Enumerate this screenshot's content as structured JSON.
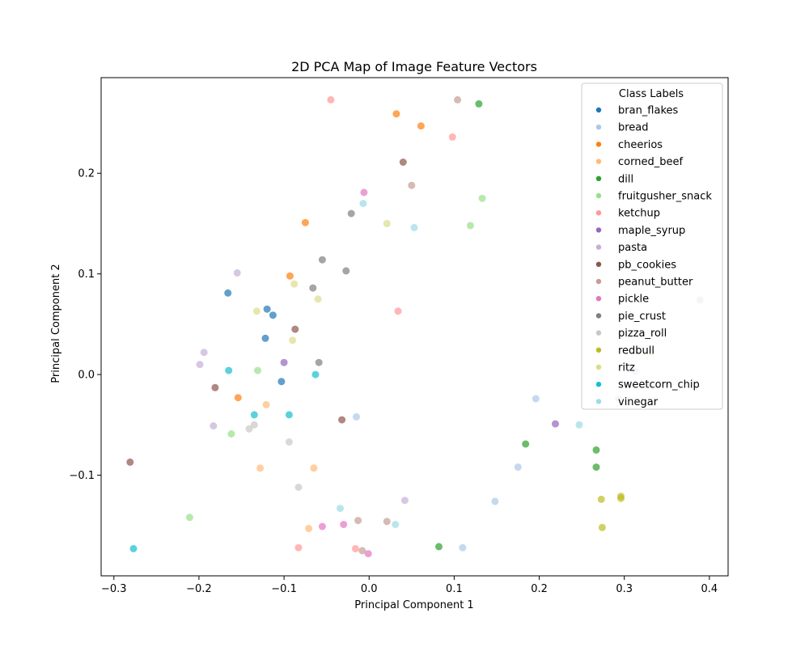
{
  "chart_data": {
    "type": "scatter",
    "title": "2D PCA Map of Image Feature Vectors",
    "xlabel": "Principal Component 1",
    "ylabel": "Principal Component 2",
    "xlim": [
      -0.315,
      0.422
    ],
    "ylim": [
      -0.2,
      0.295
    ],
    "xticks": [
      -0.3,
      -0.2,
      -0.1,
      0.0,
      0.1,
      0.2,
      0.3,
      0.4
    ],
    "xtick_labels": [
      "−0.3",
      "−0.2",
      "−0.1",
      "0.0",
      "0.1",
      "0.2",
      "0.3",
      "0.4"
    ],
    "yticks": [
      -0.1,
      0.0,
      0.1,
      0.2
    ],
    "ytick_labels": [
      "−0.1",
      "0.0",
      "0.1",
      "0.2"
    ],
    "grid": false,
    "legend": {
      "title": "Class Labels",
      "placement": "top-right"
    },
    "marker_alpha": 0.7,
    "series": [
      {
        "name": "bran_flakes",
        "color": "#1f77b4",
        "points": [
          [
            -0.166,
            0.081
          ],
          [
            -0.12,
            0.065
          ],
          [
            -0.113,
            0.059
          ],
          [
            -0.122,
            0.036
          ],
          [
            -0.103,
            -0.007
          ]
        ]
      },
      {
        "name": "bread",
        "color": "#aec7e8",
        "points": [
          [
            -0.015,
            -0.042
          ],
          [
            0.196,
            -0.024
          ],
          [
            0.175,
            -0.092
          ],
          [
            0.148,
            -0.126
          ],
          [
            0.11,
            -0.172
          ],
          [
            0.293,
            -0.024
          ],
          [
            0.313,
            0.003
          ]
        ]
      },
      {
        "name": "cheerios",
        "color": "#ff7f0e",
        "points": [
          [
            0.032,
            0.259
          ],
          [
            0.061,
            0.247
          ],
          [
            -0.075,
            0.151
          ],
          [
            -0.093,
            0.098
          ],
          [
            -0.154,
            -0.023
          ]
        ]
      },
      {
        "name": "corned_beef",
        "color": "#ffbb78",
        "points": [
          [
            -0.121,
            -0.03
          ],
          [
            -0.128,
            -0.093
          ],
          [
            -0.065,
            -0.093
          ],
          [
            -0.071,
            -0.153
          ]
        ]
      },
      {
        "name": "dill",
        "color": "#2ca02c",
        "points": [
          [
            0.129,
            0.269
          ],
          [
            0.184,
            -0.069
          ],
          [
            0.267,
            -0.075
          ],
          [
            0.267,
            -0.092
          ],
          [
            0.082,
            -0.171
          ]
        ]
      },
      {
        "name": "fruitgusher_snack",
        "color": "#98df8a",
        "points": [
          [
            0.133,
            0.175
          ],
          [
            0.119,
            0.148
          ],
          [
            -0.131,
            0.004
          ],
          [
            -0.162,
            -0.059
          ],
          [
            -0.211,
            -0.142
          ]
        ]
      },
      {
        "name": "ketchup",
        "color": "#ff9896",
        "points": [
          [
            -0.045,
            0.273
          ],
          [
            0.098,
            0.236
          ],
          [
            0.034,
            0.063
          ],
          [
            -0.083,
            -0.172
          ],
          [
            -0.016,
            -0.173
          ]
        ]
      },
      {
        "name": "maple_syrup",
        "color": "#9467bd",
        "points": [
          [
            -0.1,
            0.012
          ],
          [
            0.219,
            -0.049
          ]
        ]
      },
      {
        "name": "pasta",
        "color": "#c5b0d5",
        "points": [
          [
            -0.155,
            0.101
          ],
          [
            -0.194,
            0.022
          ],
          [
            -0.199,
            0.01
          ],
          [
            -0.183,
            -0.051
          ],
          [
            0.042,
            -0.125
          ],
          [
            0.389,
            0.074
          ]
        ]
      },
      {
        "name": "pb_cookies",
        "color": "#8c564b",
        "points": [
          [
            0.04,
            0.211
          ],
          [
            -0.087,
            0.045
          ],
          [
            -0.181,
            -0.013
          ],
          [
            -0.032,
            -0.045
          ],
          [
            -0.281,
            -0.087
          ]
        ]
      },
      {
        "name": "peanut_butter",
        "color": "#c49c94",
        "points": [
          [
            0.104,
            0.273
          ],
          [
            0.05,
            0.188
          ],
          [
            -0.013,
            -0.145
          ],
          [
            0.021,
            -0.146
          ],
          [
            -0.008,
            -0.175
          ]
        ]
      },
      {
        "name": "pickle",
        "color": "#e377c2",
        "points": [
          [
            -0.006,
            0.181
          ],
          [
            -0.055,
            -0.151
          ],
          [
            -0.03,
            -0.149
          ],
          [
            -0.001,
            -0.178
          ]
        ]
      },
      {
        "name": "pie_crust",
        "color": "#7f7f7f",
        "points": [
          [
            -0.021,
            0.16
          ],
          [
            -0.055,
            0.114
          ],
          [
            -0.027,
            0.103
          ],
          [
            -0.066,
            0.086
          ],
          [
            -0.059,
            0.012
          ]
        ]
      },
      {
        "name": "pizza_roll",
        "color": "#c7c7c7",
        "points": [
          [
            -0.135,
            -0.05
          ],
          [
            -0.141,
            -0.054
          ],
          [
            -0.094,
            -0.067
          ],
          [
            -0.083,
            -0.112
          ]
        ]
      },
      {
        "name": "redbull",
        "color": "#bcbd22",
        "points": [
          [
            0.296,
            -0.121
          ],
          [
            0.296,
            -0.123
          ],
          [
            0.273,
            -0.124
          ],
          [
            0.274,
            -0.152
          ]
        ]
      },
      {
        "name": "ritz",
        "color": "#dbdb8d",
        "points": [
          [
            0.021,
            0.15
          ],
          [
            -0.088,
            0.09
          ],
          [
            -0.06,
            0.075
          ],
          [
            -0.132,
            0.063
          ],
          [
            -0.09,
            0.034
          ],
          [
            0.331,
            0.022
          ]
        ]
      },
      {
        "name": "sweetcorn_chip",
        "color": "#17becf",
        "points": [
          [
            -0.165,
            0.004
          ],
          [
            -0.063,
            0.0
          ],
          [
            -0.135,
            -0.04
          ],
          [
            -0.094,
            -0.04
          ],
          [
            -0.277,
            -0.173
          ]
        ]
      },
      {
        "name": "vinegar",
        "color": "#9edae5",
        "points": [
          [
            -0.007,
            0.17
          ],
          [
            0.053,
            0.146
          ],
          [
            0.247,
            -0.05
          ],
          [
            -0.034,
            -0.133
          ],
          [
            0.031,
            -0.149
          ]
        ]
      }
    ]
  }
}
